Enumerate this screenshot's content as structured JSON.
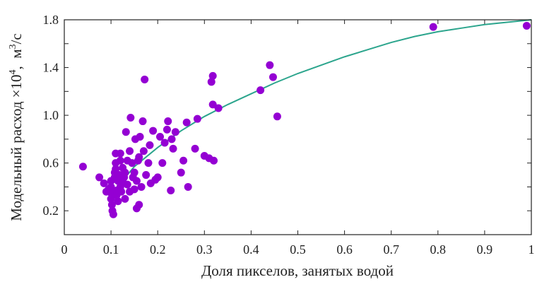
{
  "chart_data": {
    "type": "scatter",
    "xlabel": "Доля пикселов, занятых водой",
    "ylabel_main": "Модельный расход ×10",
    "ylabel_exp": "4",
    "ylabel_sep": ",  ",
    "ylabel_unit_base": "м",
    "ylabel_unit_exp": "3",
    "ylabel_unit_tail": "/с",
    "xlim": [
      0,
      1
    ],
    "ylim": [
      0,
      1.8
    ],
    "xticks": [
      0,
      0.1,
      0.2,
      0.3,
      0.4,
      0.5,
      0.6,
      0.7,
      0.8,
      0.9,
      1
    ],
    "xtick_labels": [
      "0",
      "0.1",
      "0.2",
      "0.3",
      "0.4",
      "0.5",
      "0.6",
      "0.7",
      "0.8",
      "0.9",
      "1"
    ],
    "yticks": [
      0.2,
      0.4,
      0.6,
      0.8,
      1.0,
      1.2,
      1.4,
      1.6,
      1.8
    ],
    "ytick_labels": [
      "0.2",
      "0.6",
      "1.0",
      "1.4",
      "1.8"
    ],
    "ytick_labeled_values": [
      0.2,
      0.6,
      1.0,
      1.4,
      1.8
    ],
    "grid": false,
    "point_color": "#9400d3",
    "curve_color": "#2ca58d",
    "series": [
      {
        "kind": "points",
        "points": [
          [
            0.04,
            0.57
          ],
          [
            0.075,
            0.48
          ],
          [
            0.085,
            0.43
          ],
          [
            0.09,
            0.36
          ],
          [
            0.095,
            0.38
          ],
          [
            0.1,
            0.45
          ],
          [
            0.1,
            0.4
          ],
          [
            0.1,
            0.35
          ],
          [
            0.1,
            0.3
          ],
          [
            0.102,
            0.25
          ],
          [
            0.103,
            0.2
          ],
          [
            0.105,
            0.17
          ],
          [
            0.108,
            0.48
          ],
          [
            0.108,
            0.52
          ],
          [
            0.11,
            0.6
          ],
          [
            0.11,
            0.68
          ],
          [
            0.11,
            0.55
          ],
          [
            0.112,
            0.37
          ],
          [
            0.112,
            0.33
          ],
          [
            0.115,
            0.28
          ],
          [
            0.115,
            0.45
          ],
          [
            0.118,
            0.5
          ],
          [
            0.12,
            0.62
          ],
          [
            0.12,
            0.4
          ],
          [
            0.12,
            0.68
          ],
          [
            0.122,
            0.36
          ],
          [
            0.125,
            0.44
          ],
          [
            0.125,
            0.56
          ],
          [
            0.128,
            0.48
          ],
          [
            0.13,
            0.3
          ],
          [
            0.13,
            0.52
          ],
          [
            0.132,
            0.86
          ],
          [
            0.135,
            0.62
          ],
          [
            0.135,
            0.42
          ],
          [
            0.14,
            0.7
          ],
          [
            0.14,
            0.36
          ],
          [
            0.142,
            0.98
          ],
          [
            0.145,
            0.6
          ],
          [
            0.147,
            0.48
          ],
          [
            0.15,
            0.38
          ],
          [
            0.15,
            0.52
          ],
          [
            0.152,
            0.8
          ],
          [
            0.155,
            0.45
          ],
          [
            0.155,
            0.22
          ],
          [
            0.158,
            0.62
          ],
          [
            0.16,
            0.65
          ],
          [
            0.16,
            0.25
          ],
          [
            0.162,
            0.82
          ],
          [
            0.165,
            0.4
          ],
          [
            0.168,
            0.95
          ],
          [
            0.17,
            0.7
          ],
          [
            0.172,
            1.3
          ],
          [
            0.175,
            0.5
          ],
          [
            0.18,
            0.6
          ],
          [
            0.183,
            0.75
          ],
          [
            0.185,
            0.43
          ],
          [
            0.19,
            0.87
          ],
          [
            0.195,
            0.46
          ],
          [
            0.2,
            0.48
          ],
          [
            0.205,
            0.82
          ],
          [
            0.21,
            0.6
          ],
          [
            0.215,
            0.77
          ],
          [
            0.22,
            0.88
          ],
          [
            0.222,
            0.95
          ],
          [
            0.228,
            0.37
          ],
          [
            0.23,
            0.8
          ],
          [
            0.233,
            0.72
          ],
          [
            0.238,
            0.86
          ],
          [
            0.25,
            0.52
          ],
          [
            0.255,
            0.62
          ],
          [
            0.262,
            0.94
          ],
          [
            0.265,
            0.4
          ],
          [
            0.28,
            0.72
          ],
          [
            0.285,
            0.97
          ],
          [
            0.3,
            0.66
          ],
          [
            0.31,
            0.64
          ],
          [
            0.315,
            1.28
          ],
          [
            0.318,
            1.33
          ],
          [
            0.318,
            1.09
          ],
          [
            0.32,
            0.62
          ],
          [
            0.33,
            1.06
          ],
          [
            0.42,
            1.21
          ],
          [
            0.44,
            1.42
          ],
          [
            0.447,
            1.32
          ],
          [
            0.456,
            0.99
          ],
          [
            0.79,
            1.74
          ],
          [
            0.99,
            1.75
          ]
        ]
      },
      {
        "kind": "fit-curve",
        "points": [
          [
            0.1,
            0.34
          ],
          [
            0.15,
            0.57
          ],
          [
            0.2,
            0.73
          ],
          [
            0.25,
            0.87
          ],
          [
            0.3,
            0.99
          ],
          [
            0.35,
            1.09
          ],
          [
            0.4,
            1.18
          ],
          [
            0.45,
            1.27
          ],
          [
            0.5,
            1.35
          ],
          [
            0.55,
            1.42
          ],
          [
            0.6,
            1.49
          ],
          [
            0.65,
            1.55
          ],
          [
            0.7,
            1.61
          ],
          [
            0.75,
            1.66
          ],
          [
            0.8,
            1.7
          ],
          [
            0.85,
            1.73
          ],
          [
            0.9,
            1.76
          ],
          [
            0.95,
            1.78
          ],
          [
            1.0,
            1.8
          ]
        ]
      }
    ]
  }
}
